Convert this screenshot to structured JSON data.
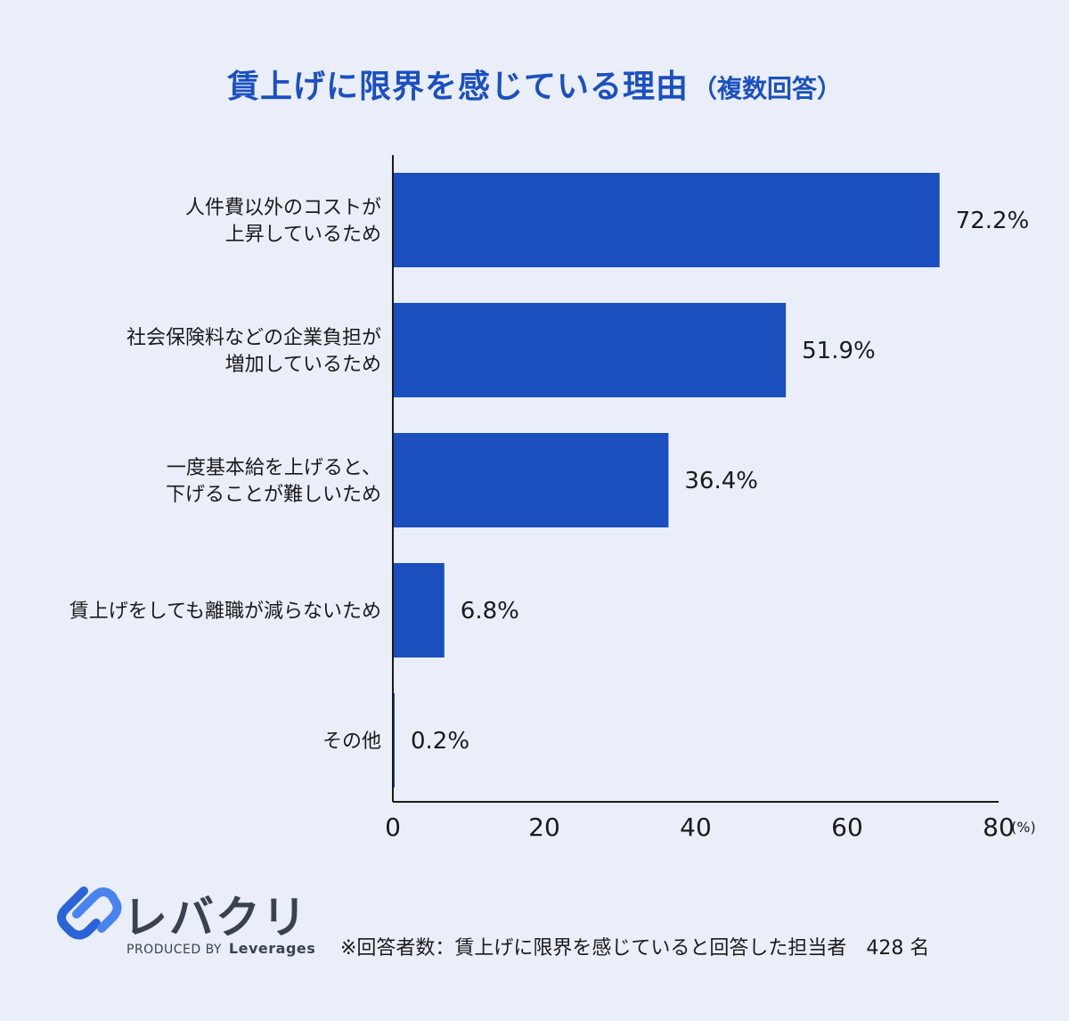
{
  "header": {
    "title": "賃上げに限界を感じている理由",
    "subtitle": "（複数回答）"
  },
  "chart_data": {
    "type": "bar",
    "orientation": "horizontal",
    "categories": [
      "人件費以外のコストが\n上昇しているため",
      "社会保険料などの企業負担が\n増加しているため",
      "一度基本給を上げると、\n下げることが難しいため",
      "賃上げをしても離職が減らないため",
      "その他"
    ],
    "values": [
      72.2,
      51.9,
      36.4,
      6.8,
      0.2
    ],
    "value_labels": [
      "72.2%",
      "51.9%",
      "36.4%",
      "6.8%",
      "0.2%"
    ],
    "xlim": [
      0,
      80
    ],
    "xticks": [
      0,
      20,
      40,
      60,
      80
    ],
    "xunit": "(%)",
    "bar_color": "#1a4fbd",
    "grid": false
  },
  "logo": {
    "name": "レバクリ",
    "produced_by": "PRODUCED BY",
    "company": "Leverages",
    "accent_color": "#2a64d8"
  },
  "footnote": "※回答者数：賃上げに限界を感じていると回答した担当者　428 名"
}
